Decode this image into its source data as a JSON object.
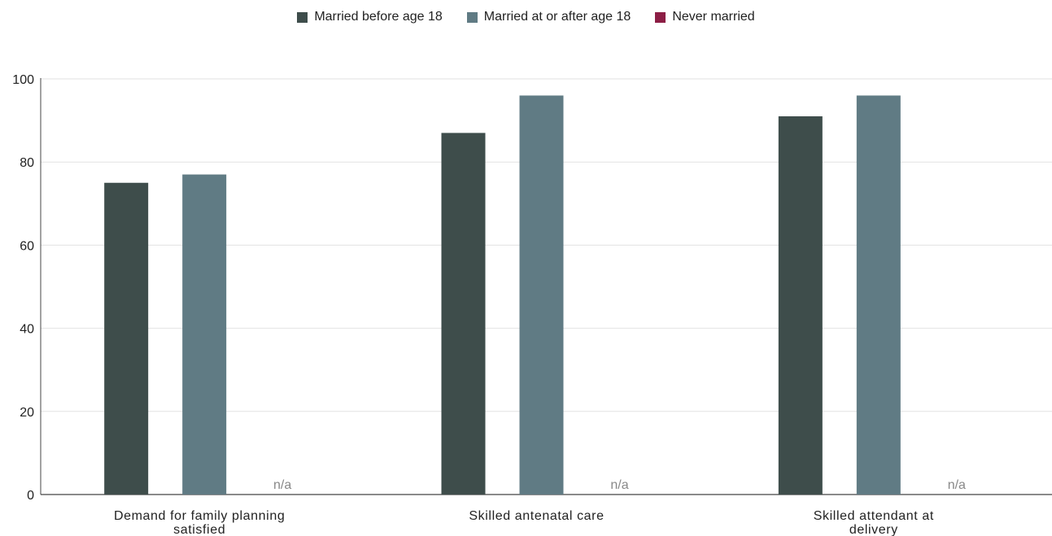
{
  "chart_data": {
    "type": "bar",
    "title": "",
    "xlabel": "",
    "ylabel": "",
    "ylim": [
      0,
      100
    ],
    "yticks": [
      0,
      20,
      40,
      60,
      80,
      100
    ],
    "grid": true,
    "legend_position": "top-center",
    "categories": [
      "Demand for family planning satisfied",
      "Skilled antenatal care",
      "Skilled attendant at delivery"
    ],
    "series": [
      {
        "name": "Married before age 18",
        "color": "#3e4d4b",
        "values": [
          75,
          87,
          91
        ]
      },
      {
        "name": "Married at or after age 18",
        "color": "#607b84",
        "values": [
          77,
          96,
          96
        ]
      },
      {
        "name": "Never married",
        "color": "#8c1e45",
        "values": [
          null,
          null,
          null
        ]
      }
    ],
    "missing_label": "n/a"
  }
}
